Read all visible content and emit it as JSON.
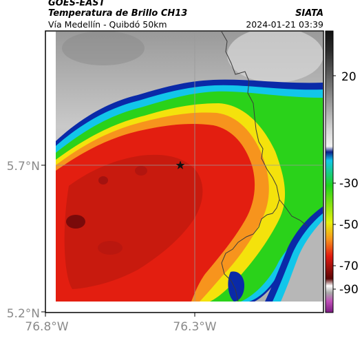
{
  "header": {
    "satellite": "GOES-EAST",
    "product": "Temperatura de Brillo CH13",
    "subtitle": "Vía Medellín - Quibdó 50km",
    "organization": "SIATA",
    "datetime": "2024-01-21 03:39"
  },
  "map": {
    "lat_labels": [
      "5.7°N",
      "5.2°N"
    ],
    "lon_labels": [
      "76.8°W",
      "76.3°W"
    ],
    "marker": "star-marker",
    "colors": {
      "cloud_core_dark": "#7a0a0a",
      "cloud_core": "#d81b0f",
      "cloud_mid": "#f0460f",
      "orange": "#f7941d",
      "yellow": "#f4e20c",
      "green": "#2ad21a",
      "cyan": "#12c6ea",
      "blue": "#0a2aa8",
      "clear_sky": "#b4b4b4"
    }
  },
  "colorbar": {
    "ticks": [
      "20",
      "-30",
      "-50",
      "-70",
      "-90"
    ]
  }
}
